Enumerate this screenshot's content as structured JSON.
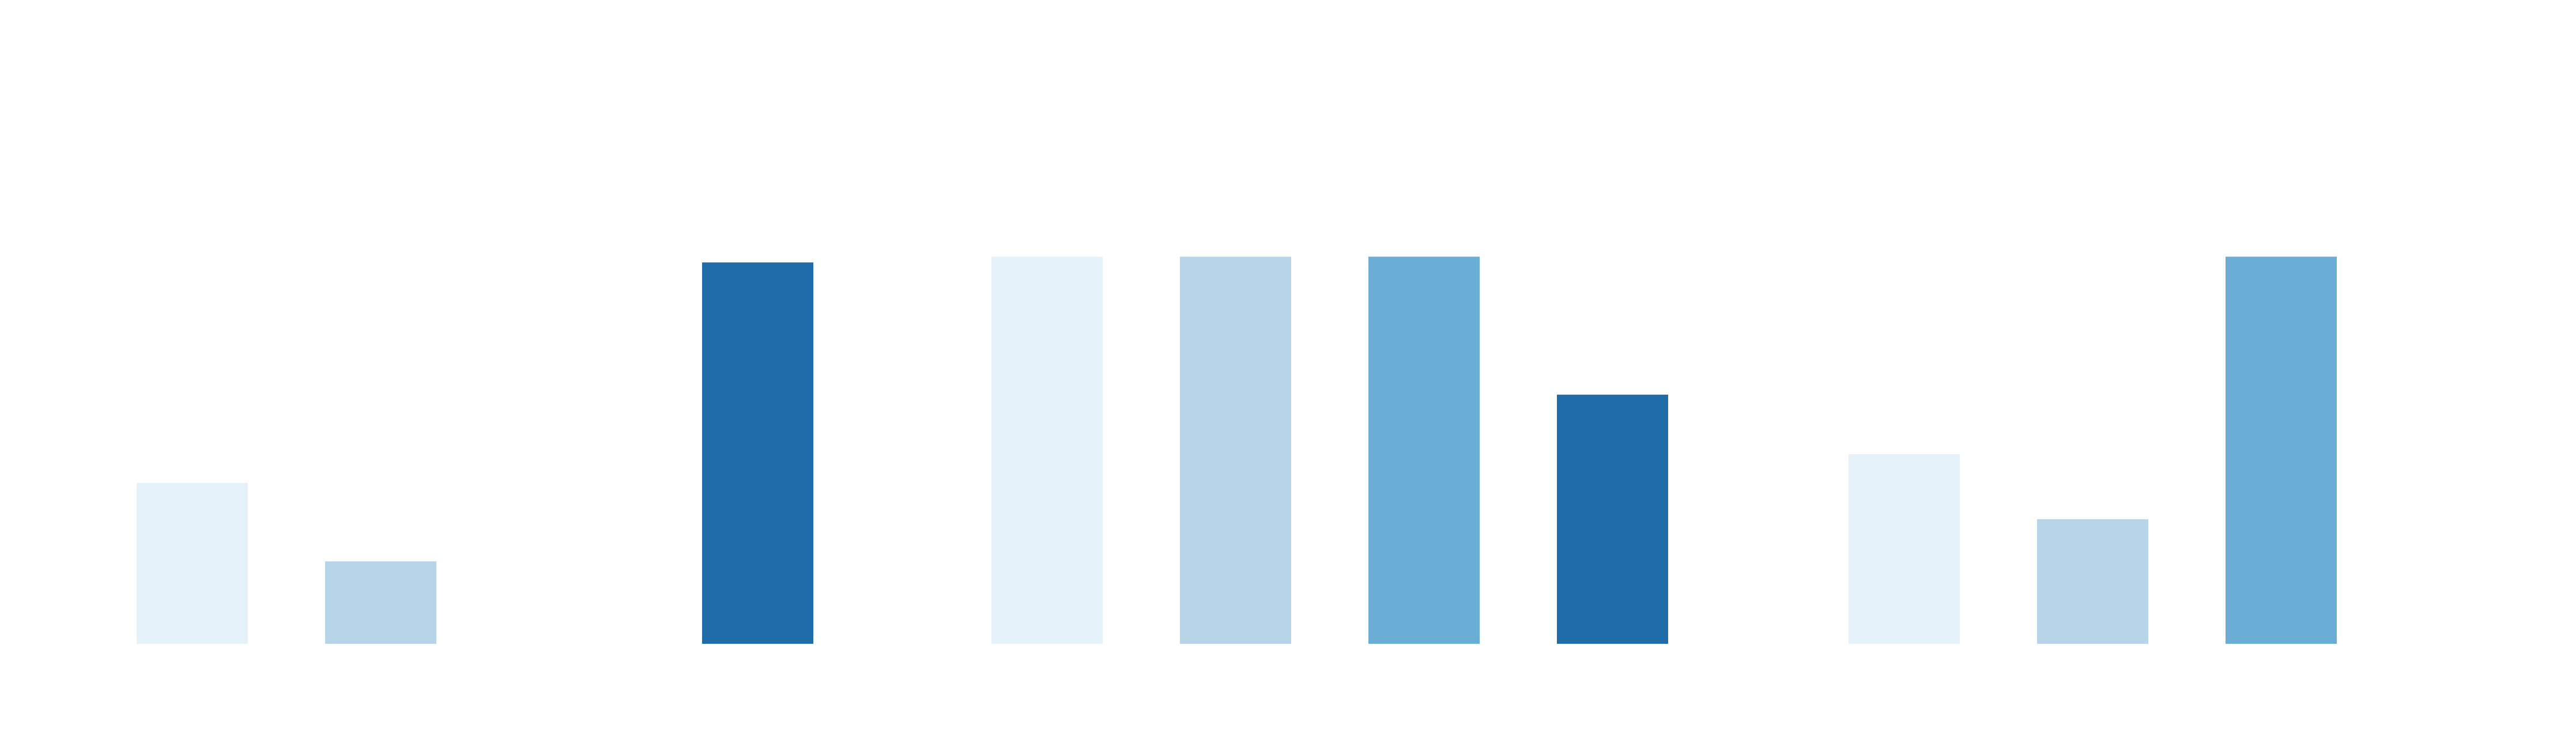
{
  "chart_data": {
    "type": "bar",
    "title": "",
    "xlabel": "",
    "ylabel": "",
    "ylim": [
      0,
      1.3
    ],
    "grid": false,
    "legend": "none",
    "palette": [
      "#e6f2fa",
      "#b8d4e8",
      "#6aaed6",
      "#1f6ca8"
    ],
    "groups": [
      {
        "bars": [
          {
            "value": 0.42,
            "color_index": 0
          },
          {
            "value": 0.215,
            "color_index": 1
          },
          {
            "value": null,
            "color_index": 2
          },
          {
            "value": 0.995,
            "color_index": 3
          }
        ]
      },
      {
        "bars": [
          {
            "value": 1.01,
            "color_index": 0
          },
          {
            "value": 1.01,
            "color_index": 1
          },
          {
            "value": 1.01,
            "color_index": 2
          },
          {
            "value": 0.65,
            "color_index": 3
          }
        ]
      },
      {
        "bars": [
          {
            "value": 0.495,
            "color_index": 0
          },
          {
            "value": 0.325,
            "color_index": 1
          },
          {
            "value": 1.01,
            "color_index": 2
          },
          {
            "value": null,
            "color_index": 3
          }
        ]
      }
    ]
  }
}
